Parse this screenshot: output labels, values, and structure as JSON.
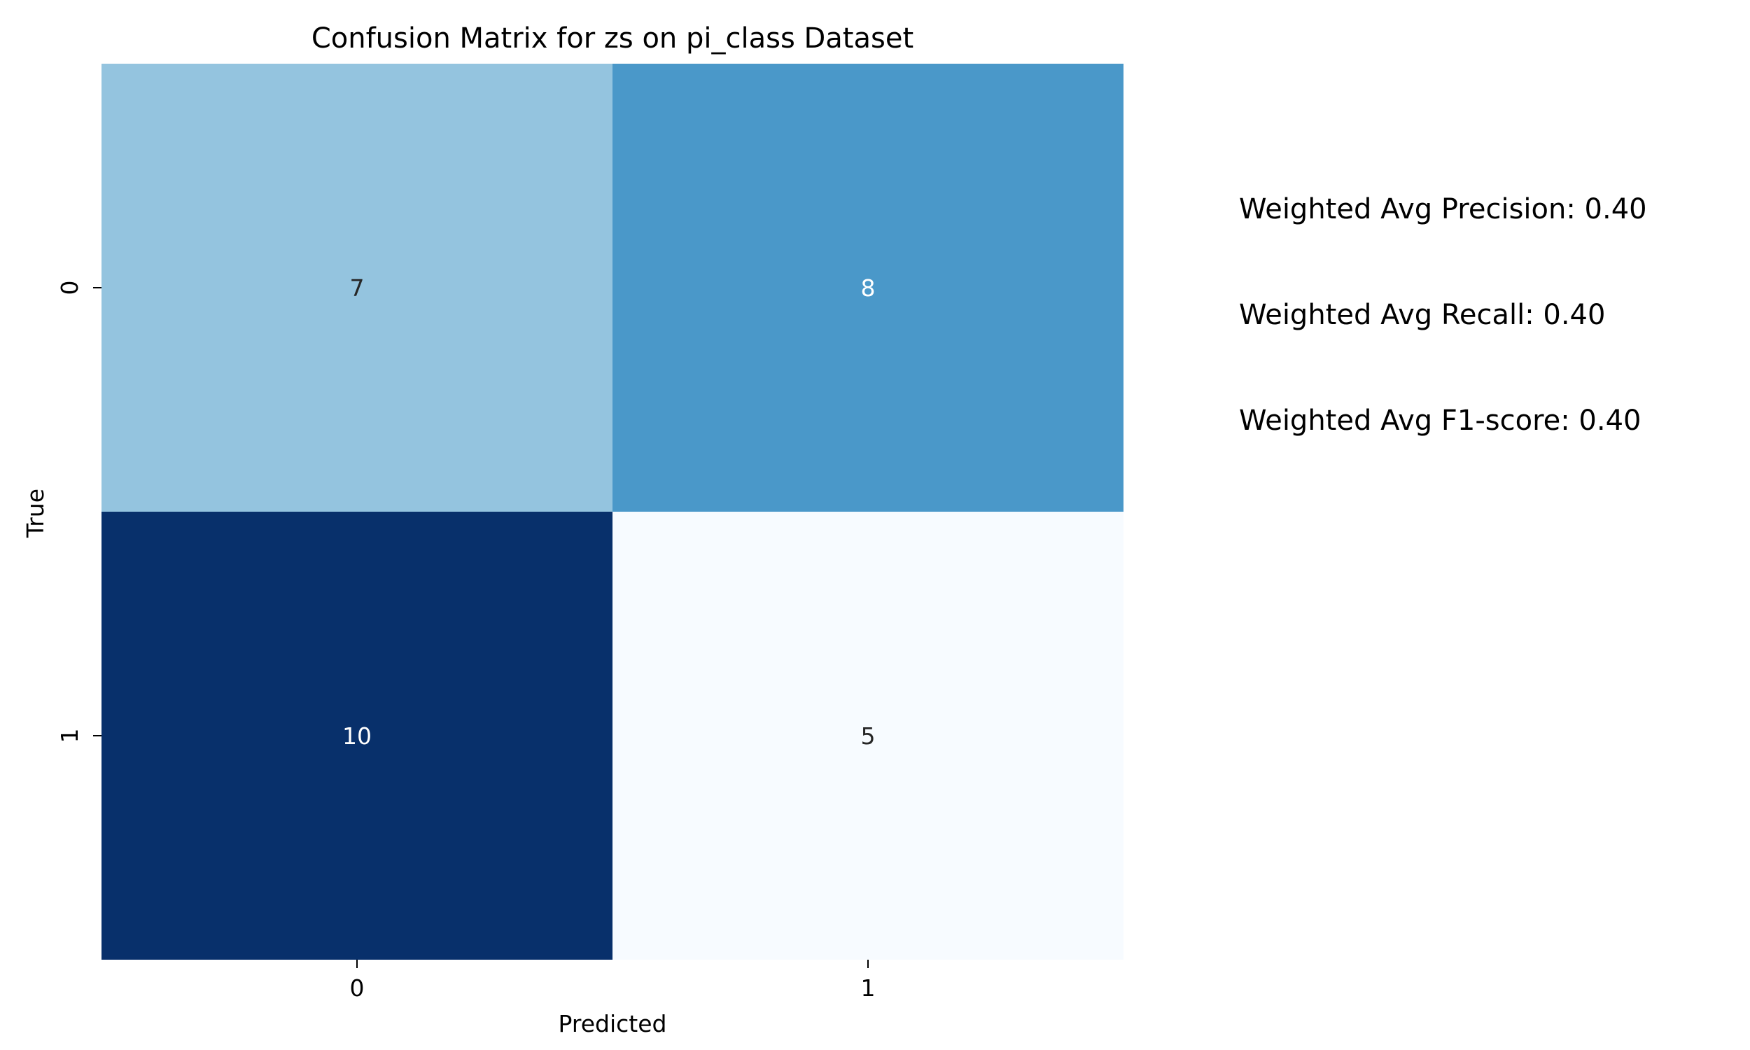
{
  "chart_data": {
    "type": "heatmap",
    "title": "Confusion Matrix for zs on pi_class Dataset",
    "xlabel": "Predicted",
    "ylabel": "True",
    "x_categories": [
      "0",
      "1"
    ],
    "y_categories": [
      "0",
      "1"
    ],
    "values": [
      [
        7,
        8
      ],
      [
        10,
        5
      ]
    ],
    "colormap": "Blues",
    "vmin": 5,
    "vmax": 10,
    "colorbar": false
  },
  "metrics": [
    {
      "label": "Weighted Avg Precision: 0.40"
    },
    {
      "label": "Weighted Avg Recall: 0.40"
    },
    {
      "label": "Weighted Avg F1-score: 0.40"
    }
  ]
}
